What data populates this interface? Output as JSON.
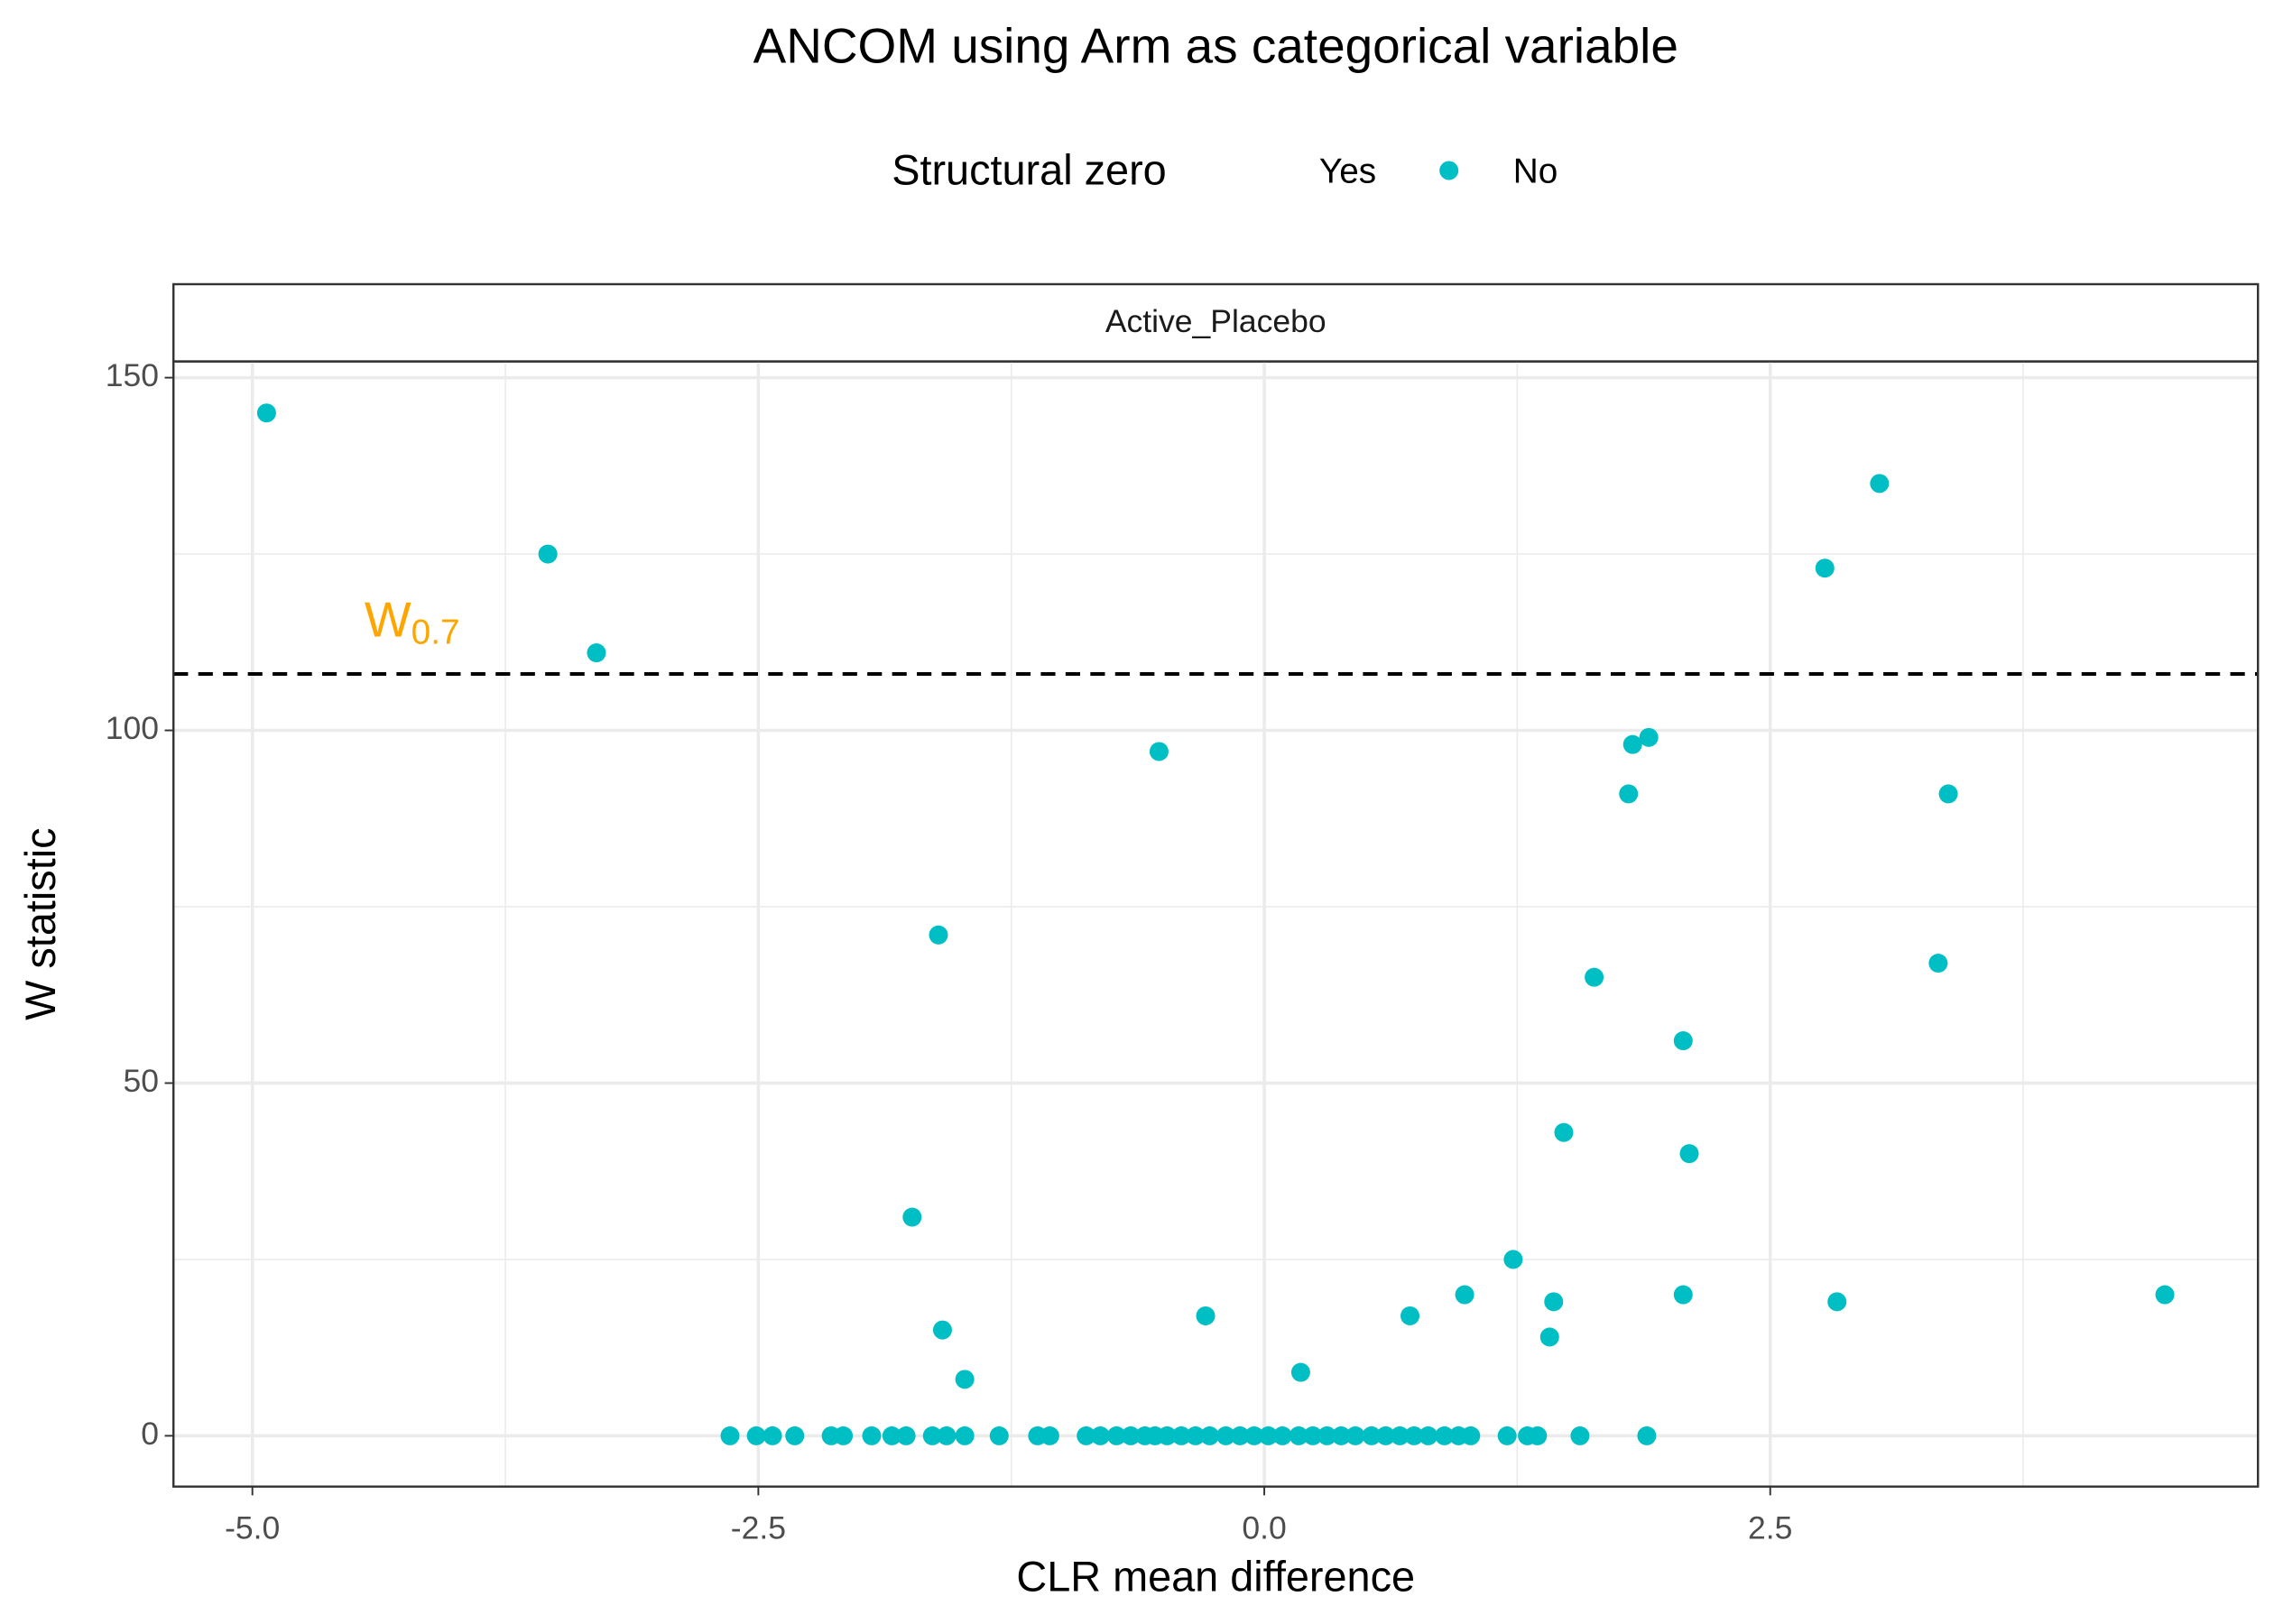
{
  "chart_data": {
    "type": "scatter",
    "title": "ANCOM using Arm as categorical variable",
    "x_label": "CLR mean difference",
    "y_label": "W statistic",
    "facet": "Active_Placebo",
    "legend_title": "Structural zero",
    "legend_position": "top",
    "grid": true,
    "xlim": [
      -5.39,
      4.91
    ],
    "ylim": [
      -7.2,
      152.3
    ],
    "xticks": [
      {
        "value": -5,
        "label": "-5.0"
      },
      -2.5,
      {
        "value": 0,
        "label": "0.0"
      },
      2.5
    ],
    "yticks": [
      0,
      50,
      100,
      150
    ],
    "threshold": {
      "value": 108,
      "label": "W",
      "subscript": "0.7",
      "color": "#FFA500"
    },
    "series": [
      {
        "name": "Yes",
        "x": [],
        "values": []
      },
      {
        "name": "No",
        "color": "#00BFC4",
        "x": [
          -4.93,
          -3.54,
          -3.3,
          3.04,
          2.77,
          -0.52,
          1.82,
          1.9,
          1.8,
          3.38,
          -1.61,
          3.33,
          1.63,
          2.07,
          1.48,
          2.1,
          -1.74,
          1.23,
          0.99,
          2.07,
          4.45,
          1.43,
          2.83,
          -0.29,
          0.72,
          -1.59,
          1.41,
          -1.48,
          0.18,
          -2.64,
          -2.51,
          -2.43,
          -2.32,
          -2.14,
          -2.08,
          -1.94,
          -1.84,
          -1.77,
          -1.64,
          -1.57,
          -1.48,
          -1.31,
          -1.12,
          -1.06,
          -0.88,
          -0.81,
          -0.73,
          -0.66,
          -0.59,
          -0.54,
          -0.48,
          -0.41,
          -0.34,
          -0.27,
          -0.19,
          -0.12,
          -0.05,
          0.02,
          0.09,
          0.17,
          0.24,
          0.31,
          0.38,
          0.45,
          0.53,
          0.6,
          0.67,
          0.74,
          0.81,
          0.89,
          0.96,
          1.02,
          1.2,
          1.3,
          1.35,
          1.56,
          1.89
        ],
        "values": [
          145,
          125,
          111,
          135,
          123,
          97,
          98,
          99,
          91,
          91,
          71,
          67,
          65,
          56,
          43,
          40,
          31,
          25,
          20,
          20,
          20,
          19,
          19,
          17,
          17,
          15,
          14,
          8,
          9,
          0,
          0,
          0,
          0,
          0,
          0,
          0,
          0,
          0,
          0,
          0,
          0,
          0,
          0,
          0,
          0,
          0,
          0,
          0,
          0,
          0,
          0,
          0,
          0,
          0,
          0,
          0,
          0,
          0,
          0,
          0,
          0,
          0,
          0,
          0,
          0,
          0,
          0,
          0,
          0,
          0,
          0,
          0,
          0,
          0,
          0,
          0,
          0
        ]
      }
    ]
  }
}
